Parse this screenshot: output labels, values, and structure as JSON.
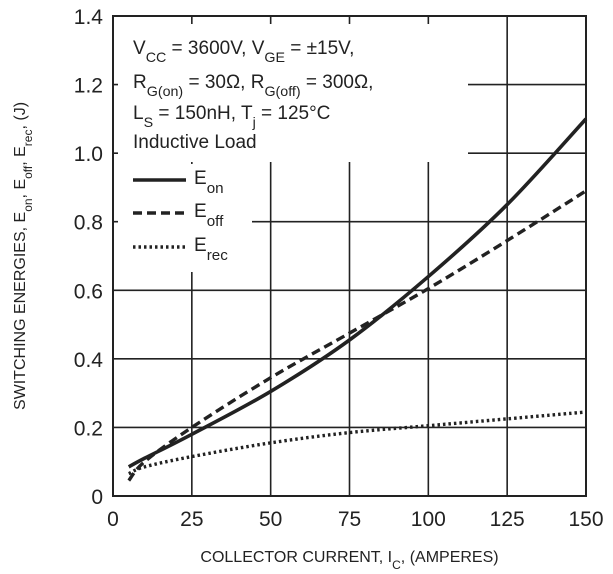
{
  "chart_data": {
    "type": "line",
    "xlabel_parts": [
      "COLLECTOR CURRENT, I",
      "C",
      ", (AMPERES)"
    ],
    "ylabel_parts": [
      "SWITCHING ENERGIES, E",
      "on",
      ", E",
      "off",
      ", E",
      "rec",
      ", (J)"
    ],
    "xlim": [
      0,
      150
    ],
    "ylim": [
      0,
      1.4
    ],
    "xticks": [
      0,
      25,
      50,
      75,
      100,
      125,
      150
    ],
    "xtick_labels": [
      "0",
      "25",
      "50",
      "75",
      "100",
      "125",
      "150"
    ],
    "yticks": [
      0,
      0.2,
      0.4,
      0.6,
      0.8,
      1.0,
      1.2,
      1.4
    ],
    "ytick_labels": [
      "0",
      "0.2",
      "0.4",
      "0.6",
      "0.8",
      "1.0",
      "1.2",
      "1.4"
    ],
    "grid": true,
    "legend_position": "upper-left",
    "conditions": [
      [
        "V",
        "CC",
        " = 3600V, V",
        "GE",
        " = ±15V,"
      ],
      [
        "R",
        "G(on)",
        " = 30Ω, R",
        "G(off)",
        " = 300Ω,"
      ],
      [
        "L",
        "S",
        " = 150nH, T",
        "j",
        " = 125°C"
      ],
      [
        "Inductive Load"
      ]
    ],
    "series": [
      {
        "name": "E",
        "name_sub": "on",
        "style": "solid",
        "x": [
          5,
          10,
          25,
          50,
          75,
          100,
          125,
          150
        ],
        "y": [
          0.085,
          0.11,
          0.18,
          0.305,
          0.455,
          0.64,
          0.85,
          1.1
        ]
      },
      {
        "name": "E",
        "name_sub": "off",
        "style": "dashed",
        "x": [
          5,
          10,
          25,
          50,
          75,
          100,
          125,
          150
        ],
        "y": [
          0.045,
          0.1,
          0.2,
          0.345,
          0.475,
          0.605,
          0.745,
          0.89
        ]
      },
      {
        "name": "E",
        "name_sub": "rec",
        "style": "dotted",
        "x": [
          5,
          10,
          25,
          50,
          75,
          100,
          125,
          150
        ],
        "y": [
          0.065,
          0.085,
          0.115,
          0.155,
          0.185,
          0.205,
          0.225,
          0.245
        ]
      }
    ]
  }
}
